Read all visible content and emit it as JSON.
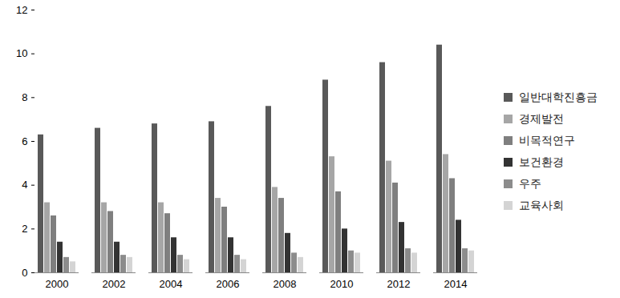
{
  "chart_data": {
    "type": "bar",
    "categories": [
      "2000",
      "2002",
      "2004",
      "2006",
      "2008",
      "2010",
      "2012",
      "2014"
    ],
    "series": [
      {
        "name": "일반대학진흥금",
        "color": "#595959",
        "values": [
          6.3,
          6.6,
          6.8,
          6.9,
          7.6,
          8.8,
          9.6,
          10.4
        ]
      },
      {
        "name": "경제발전",
        "color": "#a6a6a6",
        "values": [
          3.2,
          3.2,
          3.2,
          3.4,
          3.9,
          5.3,
          5.1,
          5.4
        ]
      },
      {
        "name": "비목적연구",
        "color": "#7f7f7f",
        "values": [
          2.6,
          2.8,
          2.7,
          3.0,
          3.4,
          3.7,
          4.1,
          4.3
        ]
      },
      {
        "name": "보건환경",
        "color": "#333333",
        "values": [
          1.4,
          1.4,
          1.6,
          1.6,
          1.8,
          2.0,
          2.3,
          2.4
        ]
      },
      {
        "name": "우주",
        "color": "#8c8c8c",
        "values": [
          0.7,
          0.8,
          0.8,
          0.8,
          0.9,
          1.0,
          1.1,
          1.1
        ]
      },
      {
        "name": "교육사회",
        "color": "#d4d4d4",
        "values": [
          0.5,
          0.7,
          0.6,
          0.6,
          0.7,
          0.9,
          0.9,
          1.0
        ]
      }
    ],
    "ylim": [
      0,
      12
    ],
    "yticks": [
      0,
      2,
      4,
      6,
      8,
      10,
      12
    ],
    "grid": false,
    "legend": "right",
    "data_labels": false
  }
}
